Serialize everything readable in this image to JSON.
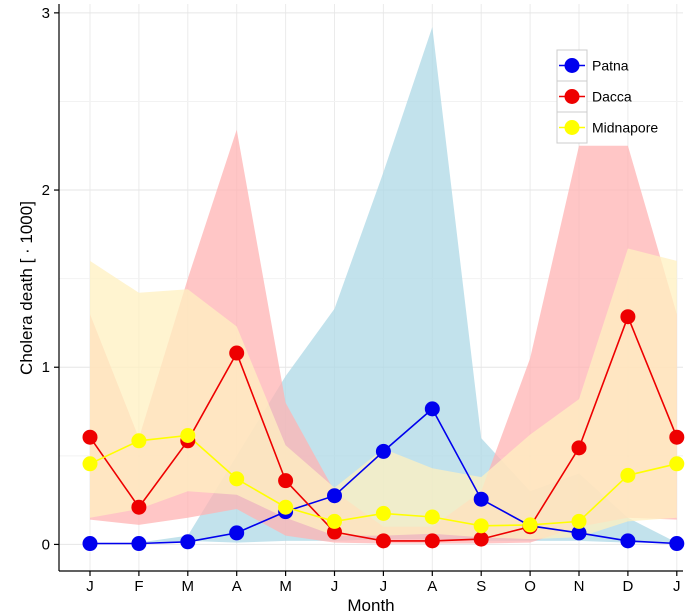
{
  "chart_data": {
    "type": "line",
    "title": "",
    "xlabel": "Month",
    "ylabel": "Cholera death [ · 1000]",
    "categories": [
      "J",
      "F",
      "M",
      "A",
      "M",
      "J",
      "J",
      "A",
      "S",
      "O",
      "N",
      "D",
      "J"
    ],
    "yticks": [
      0,
      1,
      2,
      3
    ],
    "ylim": [
      -0.15,
      3.05
    ],
    "grid": true,
    "legend_position": "top-right",
    "series": [
      {
        "name": "Patna",
        "color": "#0000ee",
        "band_color": "#add8e6",
        "values": [
          0.005,
          0.005,
          0.015,
          0.065,
          0.185,
          0.275,
          0.525,
          0.765,
          0.255,
          0.105,
          0.065,
          0.02,
          0.005
        ],
        "lower": [
          0.01,
          0.01,
          0.02,
          0.01,
          0.02,
          0.02,
          0.03,
          0.03,
          0.02,
          0.02,
          0.02,
          0.01,
          0.01
        ],
        "upper": [
          0.01,
          0.01,
          0.05,
          0.5,
          0.95,
          1.33,
          2.1,
          2.92,
          0.6,
          0.3,
          0.4,
          0.15,
          0.01
        ]
      },
      {
        "name": "Dacca",
        "color": "#ee0000",
        "band_color": "#ffb3b3",
        "values": [
          0.605,
          0.21,
          0.585,
          1.08,
          0.36,
          0.07,
          0.02,
          0.02,
          0.03,
          0.1,
          0.545,
          1.285,
          0.605
        ],
        "lower": [
          0.14,
          0.11,
          0.15,
          0.2,
          0.05,
          0.01,
          0.005,
          0.005,
          0.005,
          0.01,
          0.1,
          0.15,
          0.14
        ],
        "upper": [
          1.3,
          0.6,
          1.5,
          2.34,
          0.8,
          0.3,
          0.1,
          0.1,
          0.3,
          1.05,
          2.25,
          2.25,
          1.3
        ]
      },
      {
        "name": "Midnapore",
        "color": "#ffff00",
        "band_color": "#fff0c0",
        "values": [
          0.455,
          0.585,
          0.615,
          0.37,
          0.21,
          0.13,
          0.175,
          0.155,
          0.105,
          0.11,
          0.13,
          0.39,
          0.455
        ],
        "lower": [
          0.15,
          0.2,
          0.3,
          0.28,
          0.15,
          0.05,
          0.05,
          0.06,
          0.04,
          0.03,
          0.04,
          0.13,
          0.15
        ],
        "upper": [
          1.6,
          1.42,
          1.44,
          1.23,
          0.56,
          0.32,
          0.54,
          0.43,
          0.38,
          0.62,
          0.82,
          1.67,
          1.6
        ]
      }
    ]
  }
}
